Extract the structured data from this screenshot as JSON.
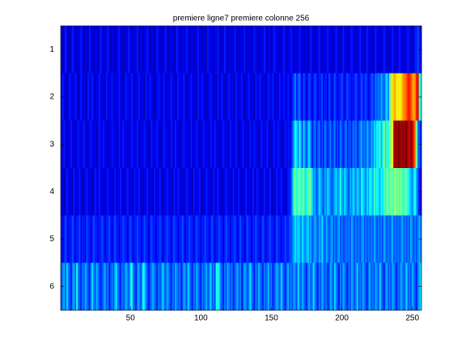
{
  "chart_data": {
    "type": "heatmap",
    "title": "premiere ligne7 premiere colonne 256",
    "colormap": "jet",
    "clim": [
      0,
      20
    ],
    "xlim": [
      0.5,
      256.5
    ],
    "xticks": [
      50,
      100,
      150,
      200,
      250
    ],
    "ylim": [
      0.5,
      6.5
    ],
    "yticks": [
      1,
      2,
      3,
      4,
      5,
      6
    ],
    "yreversed": true,
    "values": [
      [
        2,
        1,
        2,
        3,
        2,
        1,
        1,
        2,
        3,
        2,
        2,
        1,
        2,
        2,
        3,
        2,
        1,
        2,
        2,
        1,
        3,
        2,
        2,
        1,
        2,
        2,
        1,
        2,
        3,
        2,
        1,
        2,
        2,
        3,
        2,
        1,
        2,
        2,
        1,
        2,
        2,
        3,
        2,
        1,
        2,
        1,
        2,
        2,
        3,
        2,
        1,
        2,
        2,
        2,
        3,
        1,
        2,
        2,
        1,
        2,
        2,
        3,
        2,
        1,
        2,
        2,
        1,
        2,
        3,
        2,
        2,
        1,
        2,
        2,
        3,
        2,
        1,
        2,
        2,
        2,
        1,
        2,
        3,
        2,
        2,
        1,
        2,
        2,
        2,
        3,
        2,
        1,
        2,
        2,
        1,
        2,
        2,
        3,
        2,
        2,
        1,
        2,
        2,
        1,
        3,
        2,
        2,
        2,
        1,
        2,
        2,
        3,
        2,
        1,
        2,
        2,
        3,
        2,
        1,
        2,
        2,
        2,
        1,
        3,
        2,
        2,
        1,
        2,
        2,
        2,
        3,
        1,
        2,
        2,
        2,
        1,
        2,
        3,
        2,
        2,
        1,
        2,
        2,
        2,
        3,
        2,
        1,
        2,
        2,
        1,
        2,
        3,
        2,
        2,
        2,
        1,
        2,
        2,
        3,
        2,
        1,
        2,
        2,
        3,
        2,
        1,
        2,
        2,
        2,
        3,
        2,
        2,
        1,
        2,
        2,
        1,
        2,
        3,
        2,
        2,
        1,
        2,
        2,
        3,
        2,
        1,
        2,
        2,
        2,
        3,
        2,
        2,
        1,
        2,
        2,
        3,
        2,
        2,
        1,
        2,
        3,
        2,
        2,
        1,
        2,
        2,
        3,
        2,
        2,
        1,
        2,
        2,
        3,
        2,
        2,
        1,
        2,
        3,
        2,
        2,
        2,
        1,
        2,
        3,
        2,
        2,
        1,
        2,
        2,
        3,
        2,
        2,
        1,
        2,
        2,
        3,
        2,
        1,
        2,
        2,
        3,
        2,
        2,
        1,
        2,
        2,
        3,
        2,
        2,
        1,
        2,
        3,
        3,
        4,
        3,
        2
      ],
      [
        2,
        3,
        2,
        2,
        1,
        2,
        3,
        2,
        2,
        2,
        3,
        2,
        1,
        2,
        3,
        2,
        2,
        2,
        1,
        3,
        2,
        2,
        3,
        2,
        1,
        2,
        2,
        3,
        2,
        2,
        2,
        1,
        3,
        2,
        2,
        2,
        3,
        1,
        2,
        2,
        2,
        3,
        2,
        2,
        1,
        2,
        3,
        2,
        2,
        2,
        3,
        2,
        1,
        2,
        2,
        3,
        2,
        2,
        2,
        1,
        3,
        2,
        2,
        3,
        2,
        2,
        1,
        2,
        2,
        3,
        2,
        2,
        2,
        3,
        1,
        2,
        2,
        2,
        3,
        2,
        2,
        1,
        2,
        3,
        2,
        2,
        2,
        3,
        2,
        1,
        2,
        2,
        3,
        2,
        2,
        2,
        1,
        3,
        2,
        2,
        3,
        2,
        2,
        1,
        2,
        2,
        3,
        2,
        2,
        2,
        1,
        3,
        2,
        2,
        3,
        2,
        1,
        2,
        2,
        3,
        2,
        2,
        2,
        1,
        3,
        2,
        2,
        2,
        3,
        2,
        1,
        2,
        2,
        3,
        2,
        2,
        2,
        1,
        3,
        2,
        2,
        3,
        2,
        2,
        2,
        1,
        2,
        3,
        2,
        2,
        3,
        2,
        1,
        2,
        2,
        3,
        2,
        2,
        3,
        2,
        2,
        3,
        2,
        2,
        3,
        4,
        5,
        3,
        4,
        5,
        3,
        2,
        4,
        3,
        2,
        3,
        4,
        3,
        2,
        3,
        4,
        3,
        2,
        3,
        3,
        4,
        2,
        3,
        3,
        2,
        4,
        3,
        2,
        3,
        4,
        3,
        2,
        3,
        3,
        4,
        3,
        2,
        3,
        4,
        3,
        3,
        2,
        3,
        3,
        4,
        3,
        2,
        3,
        4,
        3,
        3,
        4,
        3,
        2,
        3,
        4,
        4,
        3,
        5,
        4,
        5,
        4,
        6,
        5,
        4,
        6,
        7,
        5,
        8,
        13,
        13,
        14,
        14,
        12,
        13,
        12,
        13,
        14,
        15,
        15,
        16,
        17,
        17,
        16,
        15,
        14,
        15,
        17,
        18,
        9,
        8
      ],
      [
        2,
        2,
        3,
        2,
        1,
        2,
        2,
        3,
        2,
        2,
        1,
        2,
        3,
        2,
        2,
        2,
        3,
        2,
        1,
        2,
        2,
        3,
        2,
        2,
        2,
        1,
        2,
        3,
        2,
        2,
        3,
        2,
        2,
        1,
        2,
        2,
        3,
        2,
        2,
        2,
        1,
        3,
        2,
        2,
        3,
        2,
        2,
        1,
        2,
        2,
        3,
        2,
        2,
        2,
        3,
        1,
        2,
        2,
        2,
        3,
        2,
        2,
        1,
        2,
        3,
        2,
        2,
        2,
        3,
        2,
        1,
        2,
        2,
        3,
        2,
        2,
        2,
        1,
        3,
        2,
        2,
        3,
        2,
        2,
        1,
        2,
        2,
        3,
        2,
        2,
        2,
        1,
        3,
        2,
        2,
        2,
        3,
        2,
        1,
        2,
        2,
        3,
        2,
        2,
        2,
        1,
        3,
        2,
        2,
        3,
        2,
        2,
        1,
        2,
        2,
        3,
        2,
        2,
        2,
        1,
        3,
        2,
        2,
        2,
        3,
        2,
        1,
        2,
        2,
        3,
        2,
        2,
        2,
        1,
        3,
        2,
        2,
        3,
        2,
        2,
        1,
        2,
        3,
        2,
        2,
        2,
        3,
        2,
        1,
        2,
        2,
        3,
        2,
        2,
        3,
        2,
        2,
        1,
        2,
        3,
        2,
        3,
        2,
        3,
        4,
        6,
        8,
        7,
        5,
        8,
        6,
        4,
        7,
        5,
        4,
        6,
        7,
        5,
        3,
        4,
        5,
        3,
        4,
        5,
        3,
        4,
        3,
        5,
        4,
        3,
        4,
        5,
        3,
        4,
        5,
        3,
        4,
        3,
        5,
        4,
        3,
        4,
        5,
        3,
        4,
        4,
        3,
        5,
        4,
        5,
        3,
        4,
        5,
        6,
        4,
        5,
        4,
        6,
        5,
        4,
        6,
        5,
        7,
        6,
        8,
        7,
        9,
        6,
        8,
        10,
        7,
        9,
        8,
        10,
        11,
        12,
        19,
        20,
        19,
        20,
        20,
        19,
        20,
        19,
        20,
        20,
        19,
        18,
        20,
        19,
        17,
        15,
        10,
        5,
        4,
        3
      ],
      [
        2,
        2,
        1,
        2,
        3,
        2,
        2,
        2,
        1,
        3,
        2,
        2,
        2,
        3,
        2,
        1,
        2,
        2,
        3,
        2,
        2,
        2,
        1,
        2,
        3,
        2,
        2,
        3,
        2,
        2,
        1,
        2,
        2,
        3,
        2,
        2,
        2,
        1,
        3,
        2,
        2,
        2,
        3,
        2,
        1,
        2,
        2,
        3,
        2,
        2,
        2,
        1,
        3,
        2,
        2,
        3,
        2,
        2,
        1,
        2,
        2,
        3,
        2,
        2,
        2,
        1,
        3,
        2,
        2,
        2,
        3,
        2,
        1,
        2,
        2,
        3,
        2,
        2,
        2,
        1,
        3,
        2,
        2,
        3,
        2,
        2,
        1,
        2,
        2,
        3,
        2,
        2,
        2,
        1,
        3,
        2,
        2,
        2,
        3,
        2,
        1,
        2,
        2,
        3,
        2,
        2,
        2,
        1,
        3,
        2,
        2,
        3,
        2,
        2,
        1,
        2,
        2,
        3,
        2,
        2,
        2,
        1,
        3,
        2,
        2,
        2,
        3,
        2,
        1,
        2,
        2,
        3,
        2,
        2,
        2,
        1,
        3,
        2,
        2,
        3,
        2,
        2,
        1,
        2,
        3,
        2,
        2,
        2,
        3,
        2,
        1,
        2,
        2,
        3,
        2,
        2,
        3,
        2,
        2,
        1,
        2,
        3,
        3,
        4,
        6,
        9,
        10,
        8,
        9,
        10,
        8,
        9,
        10,
        7,
        8,
        9,
        10,
        9,
        7,
        5,
        6,
        4,
        5,
        7,
        6,
        5,
        4,
        6,
        5,
        7,
        6,
        5,
        4,
        5,
        6,
        7,
        5,
        6,
        8,
        6,
        5,
        7,
        6,
        5,
        4,
        6,
        5,
        7,
        6,
        5,
        7,
        6,
        5,
        8,
        7,
        6,
        5,
        7,
        6,
        8,
        7,
        6,
        9,
        7,
        8,
        7,
        6,
        8,
        7,
        9,
        8,
        10,
        9,
        9,
        10,
        9,
        10,
        11,
        9,
        10,
        9,
        10,
        9,
        8,
        10,
        9,
        8,
        7,
        6,
        5,
        7,
        8,
        6,
        4,
        3,
        2
      ],
      [
        3,
        2,
        3,
        4,
        3,
        2,
        3,
        3,
        4,
        3,
        2,
        3,
        3,
        4,
        2,
        3,
        3,
        2,
        4,
        3,
        3,
        2,
        3,
        4,
        3,
        3,
        2,
        3,
        3,
        4,
        3,
        2,
        3,
        3,
        4,
        3,
        2,
        3,
        4,
        3,
        3,
        2,
        3,
        3,
        4,
        3,
        3,
        2,
        3,
        4,
        3,
        2,
        3,
        3,
        4,
        3,
        3,
        2,
        3,
        4,
        3,
        3,
        2,
        3,
        4,
        3,
        3,
        2,
        3,
        3,
        4,
        3,
        2,
        3,
        3,
        4,
        3,
        3,
        2,
        3,
        4,
        3,
        3,
        2,
        3,
        3,
        4,
        3,
        2,
        3,
        3,
        4,
        3,
        3,
        2,
        3,
        4,
        3,
        3,
        2,
        3,
        3,
        4,
        3,
        3,
        2,
        3,
        4,
        3,
        2,
        3,
        3,
        4,
        3,
        3,
        2,
        3,
        4,
        3,
        3,
        2,
        3,
        3,
        4,
        3,
        2,
        3,
        4,
        3,
        3,
        2,
        3,
        4,
        3,
        3,
        2,
        3,
        3,
        4,
        3,
        3,
        2,
        3,
        4,
        3,
        2,
        3,
        3,
        4,
        3,
        3,
        2,
        3,
        4,
        3,
        3,
        2,
        3,
        3,
        4,
        3,
        3,
        4,
        4,
        5,
        6,
        7,
        6,
        7,
        6,
        5,
        7,
        6,
        5,
        6,
        7,
        5,
        6,
        4,
        5,
        6,
        5,
        4,
        6,
        5,
        7,
        5,
        4,
        6,
        5,
        4,
        5,
        6,
        4,
        5,
        4,
        5,
        6,
        4,
        5,
        4,
        4,
        5,
        4,
        5,
        4,
        6,
        5,
        4,
        5,
        4,
        5,
        4,
        5,
        6,
        4,
        5,
        4,
        5,
        4,
        5,
        4,
        6,
        5,
        4,
        5,
        4,
        5,
        4,
        6,
        5,
        4,
        5,
        4,
        5,
        6,
        4,
        5,
        4,
        5,
        4,
        5,
        6,
        4,
        5,
        4,
        5,
        4,
        6,
        5,
        4,
        5,
        4,
        5,
        6,
        5
      ],
      [
        4,
        5,
        6,
        4,
        7,
        5,
        4,
        3,
        5,
        6,
        4,
        8,
        5,
        4,
        3,
        5,
        4,
        6,
        5,
        4,
        3,
        5,
        7,
        5,
        4,
        6,
        5,
        4,
        3,
        4,
        5,
        6,
        4,
        5,
        3,
        4,
        5,
        4,
        6,
        7,
        5,
        4,
        3,
        5,
        4,
        5,
        6,
        5,
        4,
        7,
        8,
        5,
        4,
        3,
        5,
        6,
        4,
        5,
        8,
        7,
        5,
        4,
        3,
        4,
        5,
        6,
        5,
        4,
        3,
        5,
        4,
        5,
        7,
        5,
        4,
        6,
        5,
        4,
        3,
        5,
        4,
        6,
        5,
        4,
        5,
        3,
        4,
        6,
        5,
        4,
        7,
        5,
        4,
        3,
        5,
        4,
        6,
        5,
        4,
        3,
        5,
        4,
        5,
        6,
        4,
        5,
        7,
        4,
        5,
        4,
        8,
        8,
        7,
        5,
        4,
        3,
        5,
        4,
        6,
        5,
        4,
        5,
        3,
        4,
        5,
        6,
        4,
        5,
        3,
        4,
        6,
        5,
        4,
        5,
        7,
        5,
        4,
        3,
        5,
        4,
        6,
        5,
        4,
        3,
        5,
        4,
        5,
        6,
        4,
        5,
        3,
        4,
        5,
        6,
        5,
        4,
        7,
        5,
        4,
        3,
        5,
        6,
        4,
        5,
        4,
        6,
        5,
        4,
        7,
        5,
        4,
        6,
        5,
        4,
        3,
        5,
        6,
        4,
        5,
        7,
        5,
        4,
        3,
        5,
        4,
        6,
        5,
        4,
        5,
        3,
        4,
        6,
        5,
        4,
        7,
        5,
        4,
        3,
        5,
        4,
        6,
        5,
        4,
        3,
        5,
        4,
        6,
        5,
        4,
        5,
        7,
        4,
        5,
        4,
        6,
        5,
        4,
        3,
        5,
        6,
        4,
        5,
        4,
        6,
        5,
        4,
        7,
        5,
        4,
        3,
        5,
        6,
        4,
        5,
        4,
        6,
        5,
        4,
        3,
        5,
        4,
        6,
        5,
        4,
        5,
        7,
        4,
        5,
        4,
        6,
        5,
        4,
        3,
        5,
        6,
        7
      ]
    ]
  }
}
